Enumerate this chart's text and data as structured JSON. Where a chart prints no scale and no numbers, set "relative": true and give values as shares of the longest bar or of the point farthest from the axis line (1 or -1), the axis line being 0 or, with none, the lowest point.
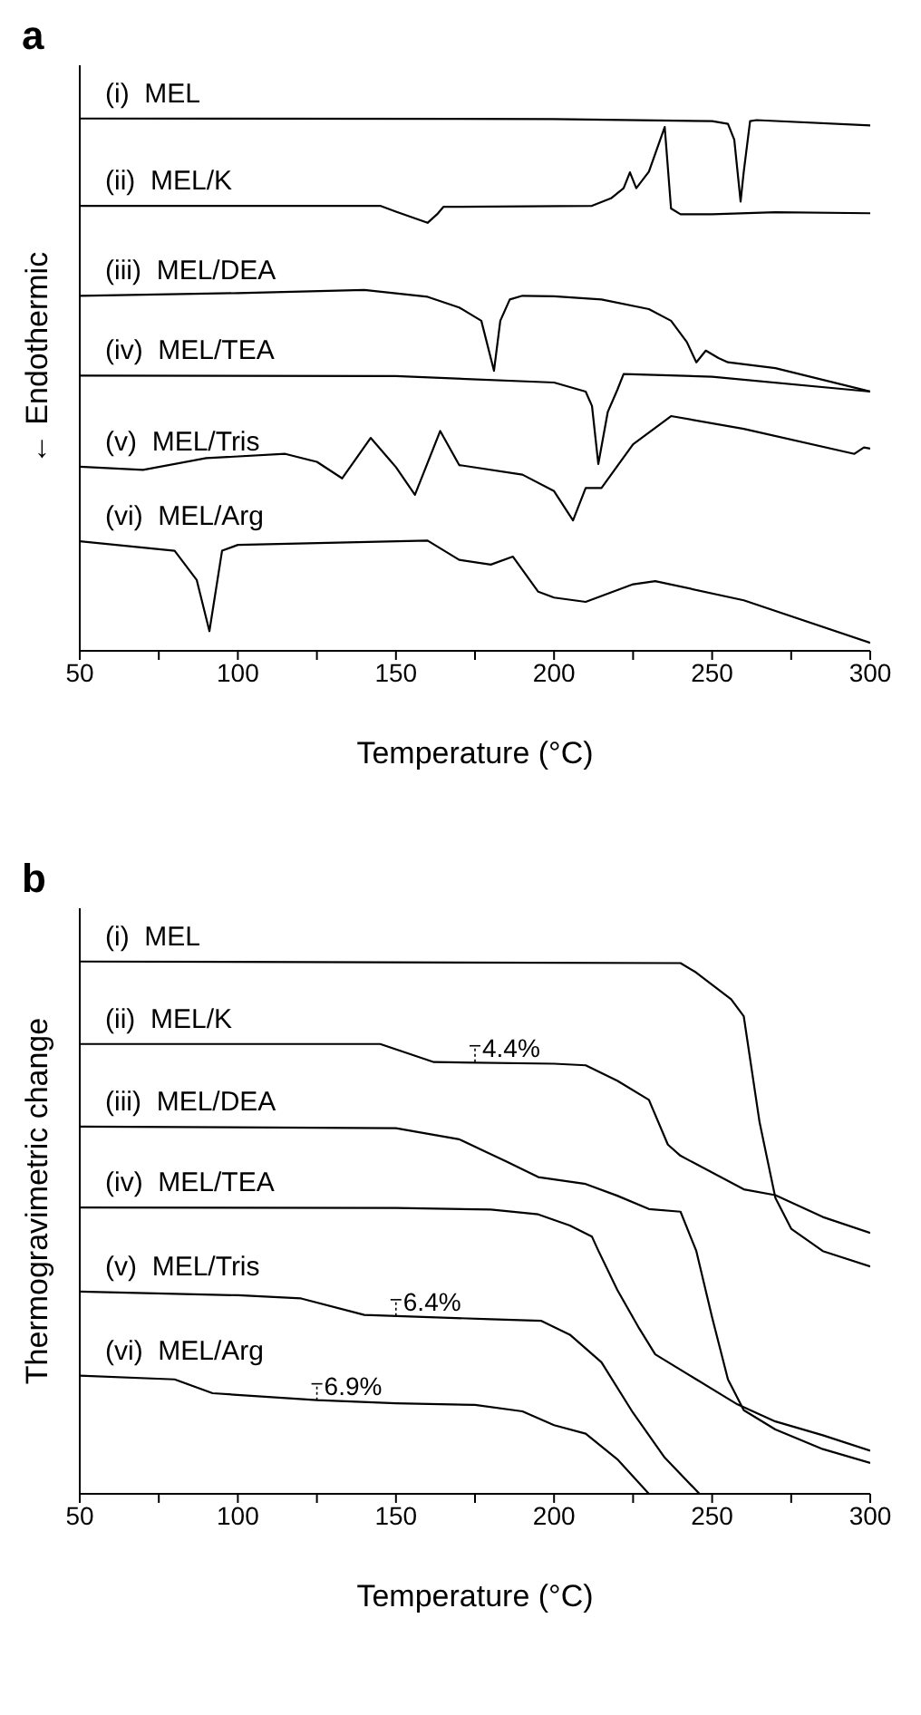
{
  "chart_data": [
    {
      "type": "line",
      "title": "a",
      "xlabel": "Temperature (°C)",
      "ylabel": "← Endothermic",
      "relative": true,
      "xlim": [
        50,
        300
      ],
      "xticks": [
        50,
        {
          "value": 75,
          "label": null
        },
        100,
        {
          "value": 125,
          "label": null
        },
        150,
        {
          "value": 175,
          "label": null
        },
        200,
        {
          "value": 225,
          "label": null
        },
        250,
        {
          "value": 275,
          "label": null
        },
        300
      ],
      "grid": false,
      "legend": false,
      "marker": "none",
      "line_style": "solid",
      "series": [
        {
          "name": "(i)  MEL",
          "color": "#000000",
          "x": [
            50,
            200,
            250,
            255,
            257,
            259,
            260,
            262,
            264,
            300
          ],
          "values": [
            1.0,
            0.999,
            0.995,
            0.99,
            0.96,
            0.844,
            0.9,
            0.995,
            0.997,
            0.987
          ]
        },
        {
          "name": "(ii)  MEL/K",
          "color": "#000000",
          "x": [
            50,
            145,
            150,
            160,
            163,
            165,
            212,
            218,
            222,
            224,
            226,
            230,
            235,
            237,
            240,
            250,
            270,
            300
          ],
          "values": [
            0.836,
            0.836,
            0.825,
            0.804,
            0.82,
            0.834,
            0.836,
            0.85,
            0.869,
            0.899,
            0.869,
            0.9,
            0.984,
            0.831,
            0.82,
            0.82,
            0.824,
            0.822
          ]
        },
        {
          "name": "(iii)  MEL/DEA",
          "color": "#000000",
          "x": [
            50,
            100,
            140,
            160,
            170,
            177,
            181,
            183,
            186,
            190,
            200,
            215,
            230,
            237,
            242,
            245,
            248,
            252,
            255,
            270,
            300
          ],
          "values": [
            0.667,
            0.672,
            0.678,
            0.665,
            0.645,
            0.62,
            0.526,
            0.62,
            0.66,
            0.667,
            0.666,
            0.66,
            0.642,
            0.62,
            0.58,
            0.542,
            0.564,
            0.55,
            0.542,
            0.531,
            0.487
          ]
        },
        {
          "name": "(iv)  MEL/TEA",
          "color": "#000000",
          "x": [
            50,
            150,
            200,
            210,
            212,
            214,
            217,
            220,
            222,
            250,
            300
          ],
          "values": [
            0.517,
            0.516,
            0.504,
            0.487,
            0.46,
            0.351,
            0.449,
            0.49,
            0.52,
            0.515,
            0.487
          ]
        },
        {
          "name": "(v)  MEL/Tris",
          "color": "#000000",
          "x": [
            50,
            70,
            90,
            115,
            125,
            133,
            142,
            150,
            156,
            164,
            170,
            190,
            200,
            206,
            210,
            215,
            225,
            237,
            260,
            295,
            298,
            300
          ],
          "values": [
            0.346,
            0.34,
            0.362,
            0.37,
            0.355,
            0.324,
            0.4,
            0.345,
            0.293,
            0.413,
            0.349,
            0.331,
            0.3,
            0.245,
            0.306,
            0.306,
            0.388,
            0.441,
            0.417,
            0.37,
            0.382,
            0.38
          ]
        },
        {
          "name": "(vi)  MEL/Arg",
          "color": "#000000",
          "x": [
            50,
            80,
            87,
            91,
            95,
            100,
            160,
            170,
            180,
            187,
            195,
            200,
            210,
            225,
            232,
            260,
            300
          ],
          "values": [
            0.206,
            0.188,
            0.133,
            0.037,
            0.188,
            0.199,
            0.207,
            0.171,
            0.162,
            0.177,
            0.111,
            0.1,
            0.092,
            0.125,
            0.131,
            0.095,
            0.015
          ]
        }
      ]
    },
    {
      "type": "line",
      "title": "b",
      "xlabel": "Temperature (°C)",
      "ylabel": "Thermogravimetric change",
      "relative": true,
      "xlim": [
        50,
        300
      ],
      "xticks": [
        50,
        {
          "value": 75,
          "label": null
        },
        100,
        {
          "value": 125,
          "label": null
        },
        150,
        {
          "value": 175,
          "label": null
        },
        200,
        {
          "value": 225,
          "label": null
        },
        250,
        {
          "value": 275,
          "label": null
        },
        300
      ],
      "grid": false,
      "legend": false,
      "marker": "none",
      "line_style": "solid",
      "annotations": [
        {
          "text": "4.4%",
          "x": 175,
          "y": 0.811
        },
        {
          "text": "6.4%",
          "x": 150,
          "y": 0.334
        },
        {
          "text": "6.9%",
          "x": 125,
          "y": 0.176
        }
      ],
      "series": [
        {
          "name": "(i)  MEL",
          "color": "#000000",
          "x": [
            50,
            240,
            245,
            256,
            260,
            265,
            270,
            275,
            285,
            300
          ],
          "values": [
            1.0,
            0.997,
            0.979,
            0.929,
            0.897,
            0.698,
            0.556,
            0.498,
            0.456,
            0.427
          ]
        },
        {
          "name": "(ii)  MEL/K",
          "color": "#000000",
          "x": [
            50,
            145,
            162,
            200,
            210,
            220,
            230,
            236,
            240,
            260,
            270,
            285,
            300
          ],
          "values": [
            0.845,
            0.845,
            0.811,
            0.808,
            0.805,
            0.776,
            0.74,
            0.656,
            0.635,
            0.572,
            0.561,
            0.52,
            0.49
          ]
        },
        {
          "name": "(iii)  MEL/DEA",
          "color": "#000000",
          "x": [
            50,
            150,
            170,
            185,
            195,
            210,
            220,
            230,
            240,
            245,
            250,
            255,
            260,
            270,
            285,
            300
          ],
          "values": [
            0.69,
            0.687,
            0.666,
            0.624,
            0.595,
            0.582,
            0.56,
            0.535,
            0.53,
            0.456,
            0.331,
            0.215,
            0.157,
            0.121,
            0.084,
            0.058
          ]
        },
        {
          "name": "(iv)  MEL/TEA",
          "color": "#000000",
          "x": [
            50,
            150,
            180,
            195,
            205,
            212,
            214,
            220,
            227,
            232,
            245,
            258,
            270,
            285,
            300
          ],
          "values": [
            0.538,
            0.537,
            0.534,
            0.525,
            0.504,
            0.483,
            0.457,
            0.383,
            0.31,
            0.262,
            0.215,
            0.168,
            0.136,
            0.11,
            0.081
          ]
        },
        {
          "name": "(v)  MEL/Tris",
          "color": "#000000",
          "x": [
            50,
            100,
            120,
            140,
            180,
            196,
            205,
            215,
            225,
            235,
            246
          ],
          "values": [
            0.38,
            0.373,
            0.367,
            0.336,
            0.328,
            0.325,
            0.299,
            0.247,
            0.152,
            0.068,
            0.0
          ]
        },
        {
          "name": "(vi)  MEL/Arg",
          "color": "#000000",
          "x": [
            50,
            80,
            92,
            125,
            150,
            175,
            190,
            200,
            210,
            220,
            230
          ],
          "values": [
            0.222,
            0.215,
            0.189,
            0.176,
            0.17,
            0.167,
            0.155,
            0.129,
            0.113,
            0.065,
            0.0
          ]
        }
      ]
    }
  ]
}
